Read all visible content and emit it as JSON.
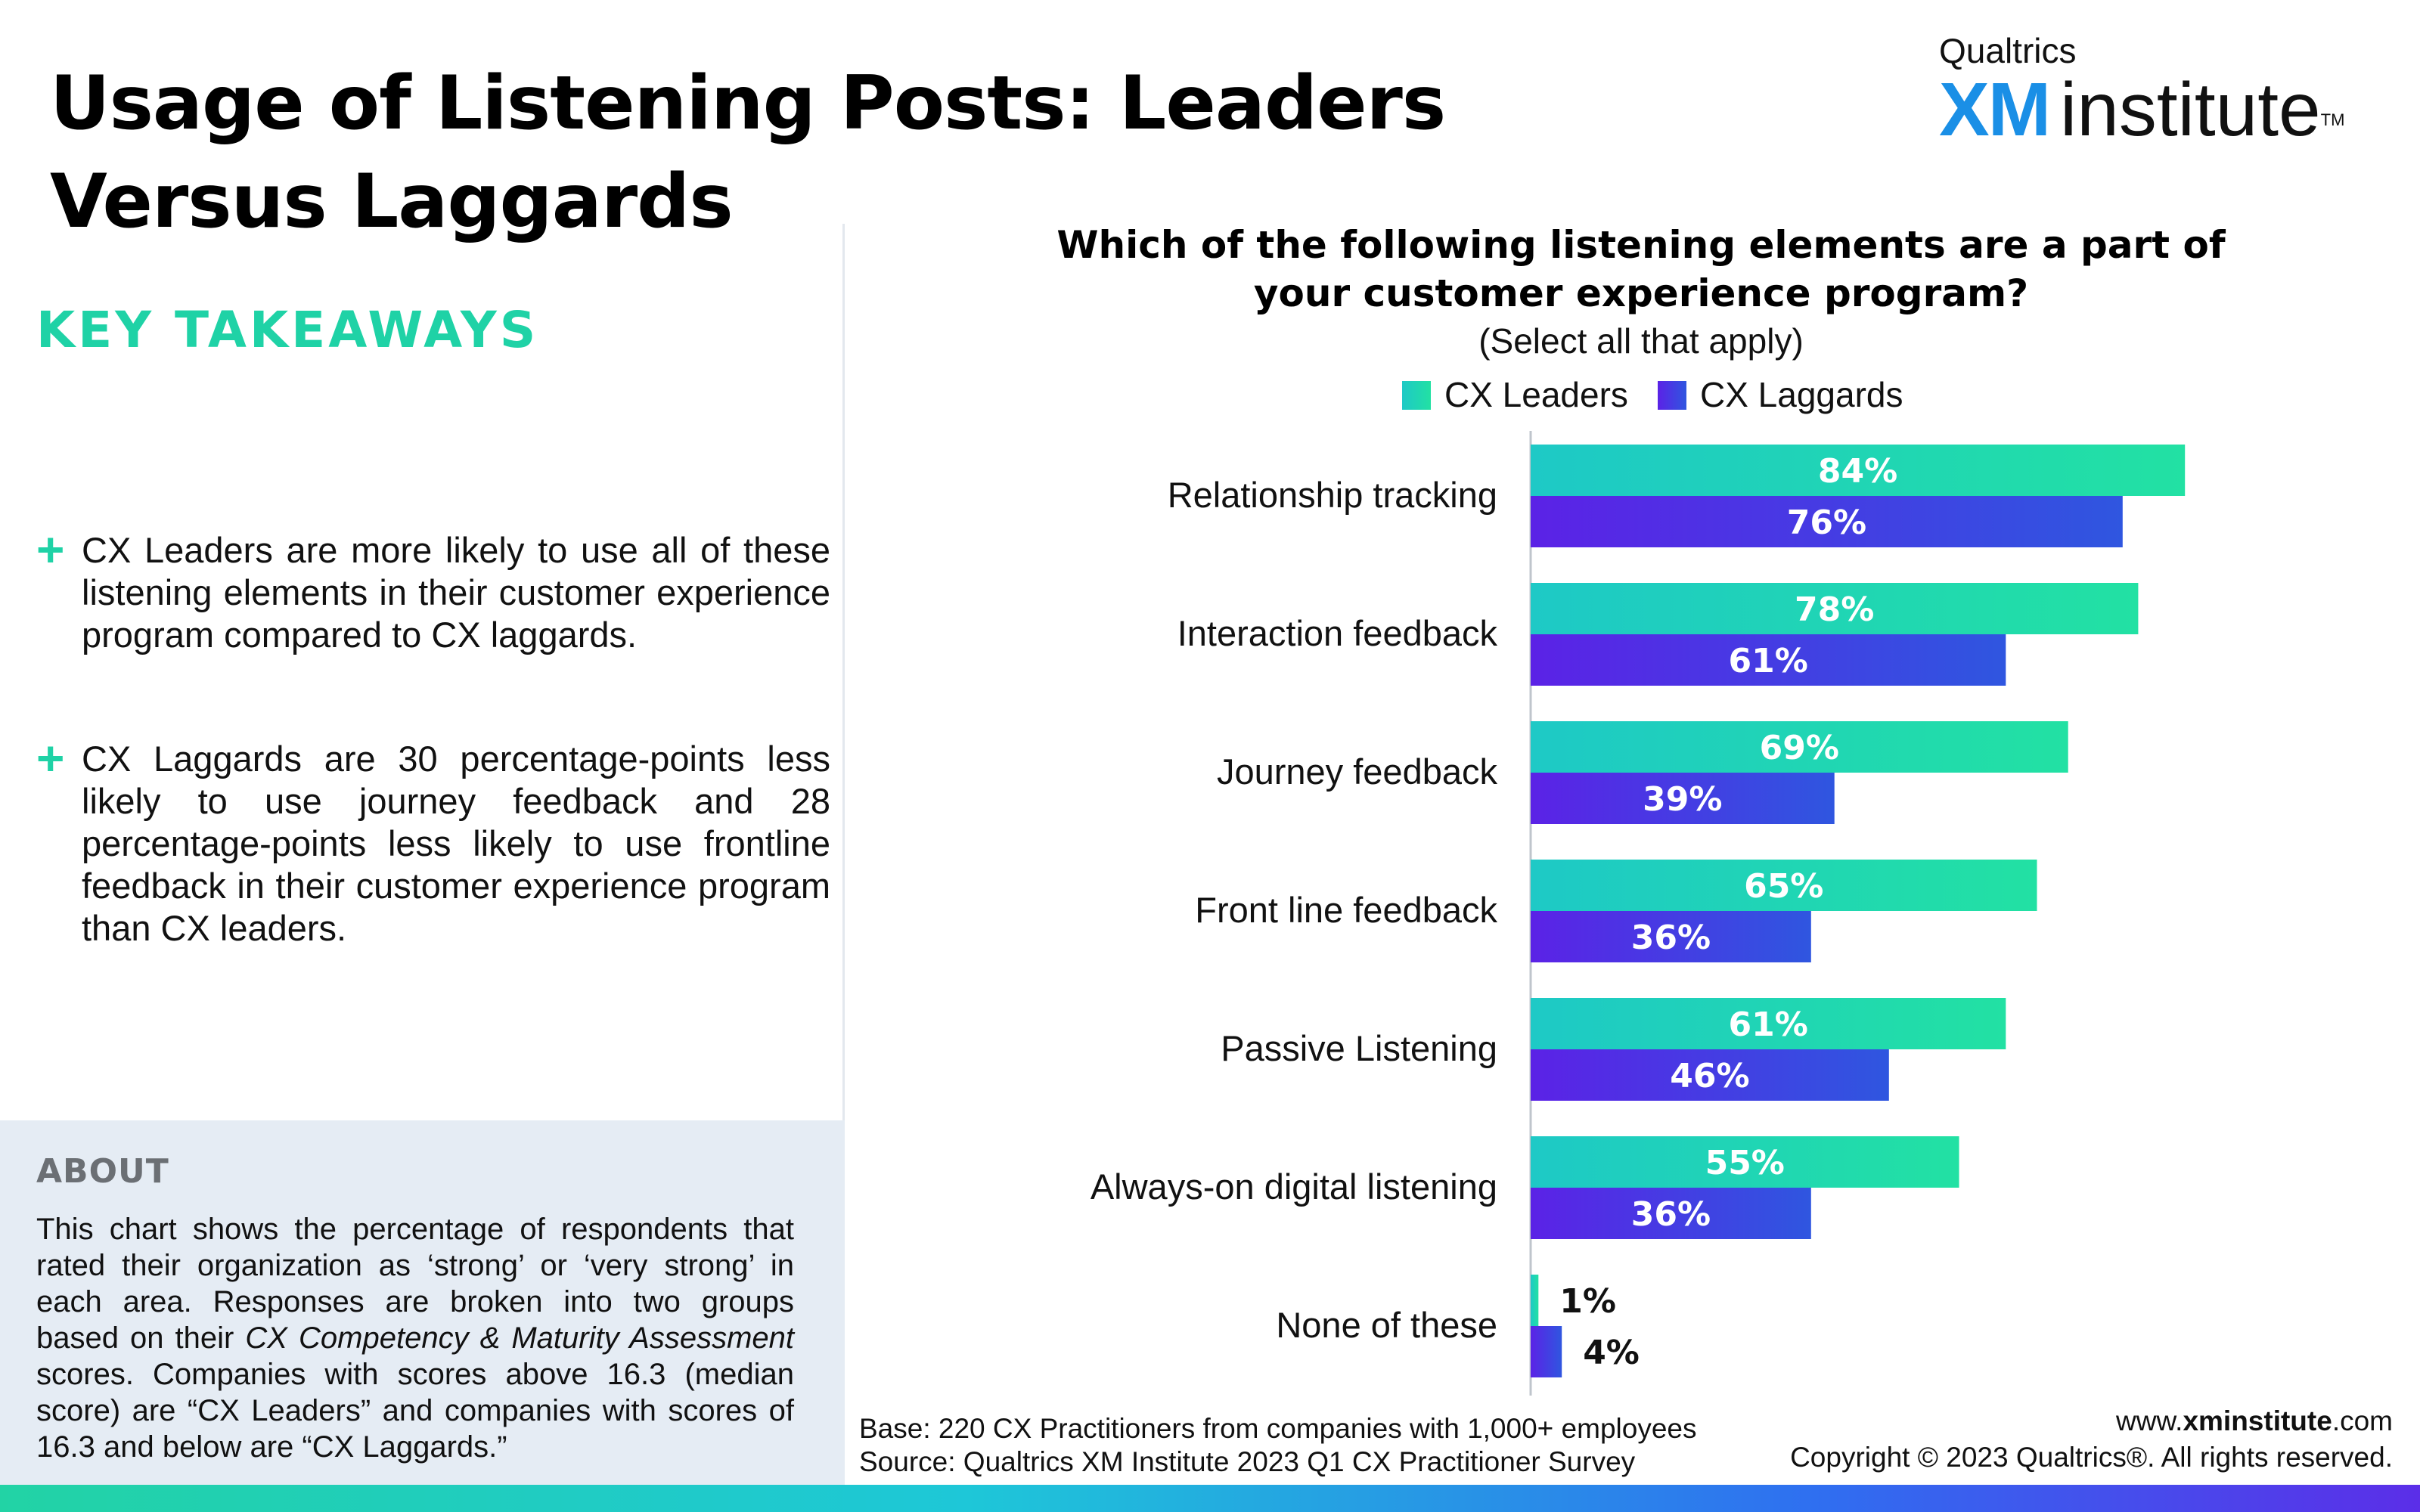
{
  "title": "Usage of Listening Posts: Leaders Versus Laggards",
  "logo": {
    "small": "Qualtrics",
    "xm": "XM",
    "institute": "institute",
    "tm": "TM"
  },
  "key_takeaways": {
    "heading": "KEY TAKEAWAYS",
    "items": [
      {
        "icon": "plus-icon",
        "text": "CX Leaders are more likely to use all of these listening elements in their customer experience program compared to CX laggards."
      },
      {
        "icon": "plus-icon",
        "text": "CX Laggards are 30 percentage-points less likely to use journey feedback and 28 percentage-points less likely to use frontline feedback in their customer experience program than CX leaders."
      }
    ]
  },
  "about": {
    "heading": "ABOUT",
    "text_1": "This chart shows the percentage of respondents that rated their organization as ‘strong’ or ‘very strong’ in each area. Responses are broken into two groups based on their ",
    "text_italic": "CX Competency & Maturity Assessment",
    "text_2": " scores. Companies with scores above 16.3 (median score) are “CX Leaders” and companies with scores of 16.3 and below are “CX Laggards.”"
  },
  "chart_data": {
    "type": "bar",
    "orientation": "horizontal",
    "title": "Which of the following listening elements are a part of your customer experience program?",
    "subtitle": "(Select all that apply)",
    "categories": [
      "Relationship tracking",
      "Interaction feedback",
      "Journey feedback",
      "Front line feedback",
      "Passive Listening",
      "Always-on digital listening",
      "None of these"
    ],
    "series": [
      {
        "name": "CX Leaders",
        "values": [
          84,
          78,
          69,
          65,
          61,
          55,
          1
        ],
        "labels": [
          "84%",
          "78%",
          "69%",
          "65%",
          "61%",
          "55%",
          "1%"
        ],
        "color_start": "#1ec9c6",
        "color_end": "#22e1a3"
      },
      {
        "name": "CX Laggards",
        "values": [
          76,
          61,
          39,
          36,
          46,
          36,
          4
        ],
        "labels": [
          "76%",
          "61%",
          "39%",
          "36%",
          "46%",
          "36%",
          "4%"
        ],
        "color_start": "#5b22e6",
        "color_end": "#2f56e0"
      }
    ],
    "xlim": [
      0,
      100
    ],
    "legend_position": "top",
    "grid": false
  },
  "footer": {
    "base": "Base: 220 CX Practitioners from companies with 1,000+ employees",
    "source": "Source: Qualtrics XM Institute 2023 Q1 CX Practitioner Survey",
    "url_prefix": "www.",
    "url_bold": "xminstitute",
    "url_suffix": ".com",
    "copyright": "Copyright © 2023 Qualtrics®. All rights reserved."
  }
}
